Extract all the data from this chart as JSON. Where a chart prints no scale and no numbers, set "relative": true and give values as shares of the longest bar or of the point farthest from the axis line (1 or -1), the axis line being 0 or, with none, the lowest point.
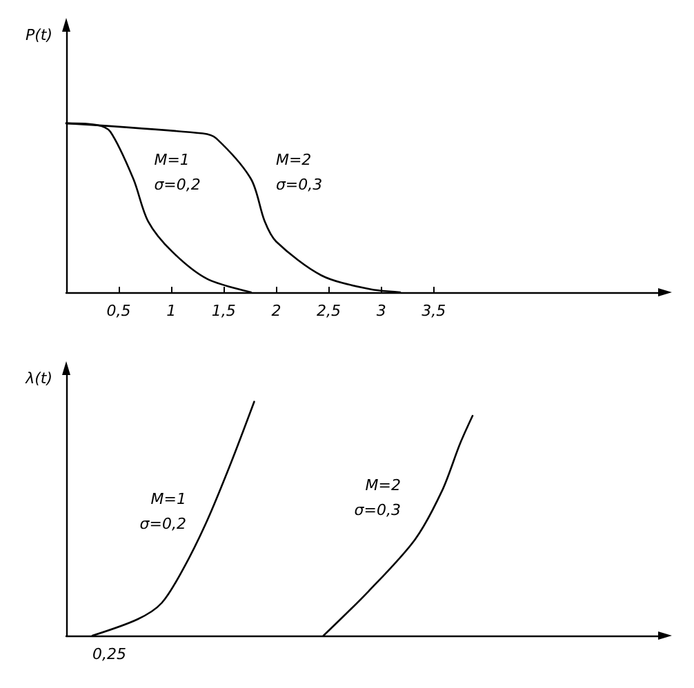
{
  "chart_data": [
    {
      "type": "line",
      "relative": true,
      "ylabel": "P(t)",
      "xlim": [
        0,
        5.65
      ],
      "xticks": [
        {
          "value": 0.5,
          "label": "0,5"
        },
        1,
        {
          "value": 1.5,
          "label": "1,5"
        },
        2,
        {
          "value": 2.5,
          "label": "2,5"
        },
        3,
        {
          "value": 3.5,
          "label": "3,5"
        }
      ],
      "series": [
        {
          "name": "M=1\nσ=0,2",
          "color": "#000000",
          "x": [
            0,
            0.29,
            0.42,
            0.64,
            0.78,
            1.01,
            1.34,
            1.76
          ],
          "values": [
            1,
            0.99,
            0.95,
            0.67,
            0.42,
            0.24,
            0.08,
            0
          ]
        },
        {
          "name": "M=2\nσ=0,3",
          "color": "#000000",
          "x": [
            0,
            1.3,
            1.43,
            1.76,
            1.89,
            2.0,
            2.43,
            2.88,
            3.18
          ],
          "values": [
            1,
            0.94,
            0.91,
            0.67,
            0.42,
            0.3,
            0.1,
            0.02,
            0
          ]
        }
      ],
      "marker": "none",
      "line_style": "solid"
    },
    {
      "type": "line",
      "relative": true,
      "ylabel": "λ(t)",
      "xlim": [
        0,
        5.65
      ],
      "series": [
        {
          "name": "M=1\nσ=0,2",
          "color": "#000000",
          "x": [
            0.25,
            0.68,
            0.91,
            1.12,
            1.34,
            1.57,
            1.79
          ],
          "values": [
            0,
            0.07,
            0.14,
            0.29,
            0.49,
            0.74,
            1
          ]
        },
        {
          "name": "M=2\nσ=0,3",
          "color": "#000000",
          "x": [
            2.45,
            2.88,
            3.32,
            3.58,
            3.75,
            3.87
          ],
          "values": [
            0,
            0.19,
            0.41,
            0.62,
            0.82,
            0.94
          ]
        }
      ],
      "annotations": [
        {
          "text": "0,25",
          "x": 0.25,
          "y": 0
        }
      ],
      "marker": "none",
      "line_style": "solid"
    }
  ]
}
